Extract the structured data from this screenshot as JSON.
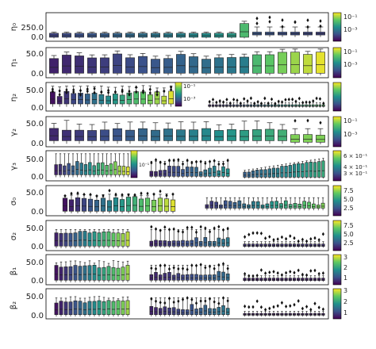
{
  "chart_data": {
    "type": "box",
    "panels": [
      {
        "ylabel": "η₀",
        "yticks": [
          "250.0",
          "0.0"
        ],
        "cbar_ticks": [
          "10⁻¹",
          "10⁻³"
        ]
      },
      {
        "ylabel": "η₁",
        "yticks": [
          "50.0",
          "0.0"
        ],
        "cbar_ticks": [
          "10⁻¹",
          "10⁻³"
        ]
      },
      {
        "ylabel": "η₂",
        "yticks": [
          "50.0",
          "0.0"
        ],
        "cbar_ticks": [],
        "inset_cbar_ticks": [
          "10⁻¹",
          "10⁻³"
        ]
      },
      {
        "ylabel": "γ₂",
        "yticks": [
          "50.0",
          "0.0"
        ],
        "cbar_ticks": [
          "10⁻¹",
          "10⁻³"
        ]
      },
      {
        "ylabel": "γ₃",
        "yticks": [
          "50.0",
          "0.0"
        ],
        "cbar_ticks": [
          "6 × 10⁻¹",
          "4 × 10⁻¹",
          "3 × 10⁻¹"
        ],
        "inset_cbar_ticks": [
          "10⁻¹"
        ]
      },
      {
        "ylabel": "σ₀",
        "yticks": [
          "50.0",
          "0.0"
        ],
        "cbar_ticks": [
          "7.5",
          "5.0",
          "2.5"
        ]
      },
      {
        "ylabel": "σ₂",
        "yticks": [
          "50.0",
          "0.0"
        ],
        "cbar_ticks": [
          "7.5",
          "5.0",
          "2.5"
        ]
      },
      {
        "ylabel": "β₁",
        "yticks": [
          "50.0",
          "0.0"
        ],
        "cbar_ticks": [
          "3",
          "2",
          "1"
        ]
      },
      {
        "ylabel": "β₂",
        "yticks": [
          "50.0",
          "0.0"
        ],
        "cbar_ticks": [
          "3",
          "2",
          "1"
        ]
      }
    ]
  }
}
